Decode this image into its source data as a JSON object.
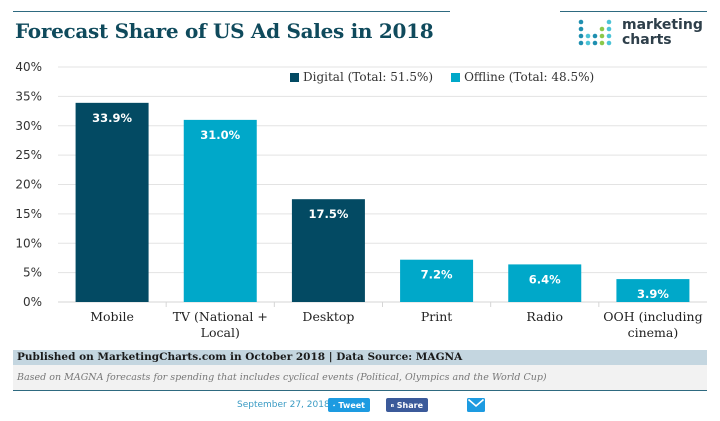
{
  "header": {
    "title": "Forecast Share of US Ad Sales in 2018",
    "logo_line1": "marketing",
    "logo_line2": "charts"
  },
  "colors": {
    "digital": "#034a63",
    "offline": "#00a8c9",
    "title": "#0f4a5c",
    "grid": "#e3e3e3"
  },
  "chart_data": {
    "type": "bar",
    "title": "Forecast Share of US Ad Sales in 2018",
    "xlabel": "",
    "ylabel": "",
    "ylim": [
      0,
      40
    ],
    "yticks": [
      0,
      5,
      10,
      15,
      20,
      25,
      30,
      35,
      40
    ],
    "ytick_labels": [
      "0%",
      "5%",
      "10%",
      "15%",
      "20%",
      "25%",
      "30%",
      "35%",
      "40%"
    ],
    "grid": true,
    "legend_position": "top-right",
    "categories": [
      [
        "Mobile"
      ],
      [
        "TV (National +",
        "Local)"
      ],
      [
        "Desktop"
      ],
      [
        "Print"
      ],
      [
        "Radio"
      ],
      [
        "OOH (including",
        "cinema)"
      ]
    ],
    "values": [
      33.9,
      31.0,
      17.5,
      7.2,
      6.4,
      3.9
    ],
    "value_labels": [
      "33.9%",
      "31.0%",
      "17.5%",
      "7.2%",
      "6.4%",
      "3.9%"
    ],
    "groups": [
      "digital",
      "offline",
      "digital",
      "offline",
      "offline",
      "offline"
    ],
    "series": [
      {
        "name": "Digital (Total: 51.5%)",
        "key": "digital",
        "total": 51.5
      },
      {
        "name": "Offline (Total: 48.5%)",
        "key": "offline",
        "total": 48.5
      }
    ]
  },
  "footer": {
    "published": "Published on MarketingCharts.com in October 2018 | Data Source: MAGNA",
    "note": "Based on MAGNA forecasts for spending that includes cyclical events (Political, Olympics and the World Cup)"
  },
  "share": {
    "date": "September 27, 2018",
    "tweet_label": "Tweet",
    "share_label": "Share",
    "twitter_icon": "twitter-bird-icon",
    "facebook_icon": "facebook-icon",
    "email_icon": "envelope-icon"
  }
}
